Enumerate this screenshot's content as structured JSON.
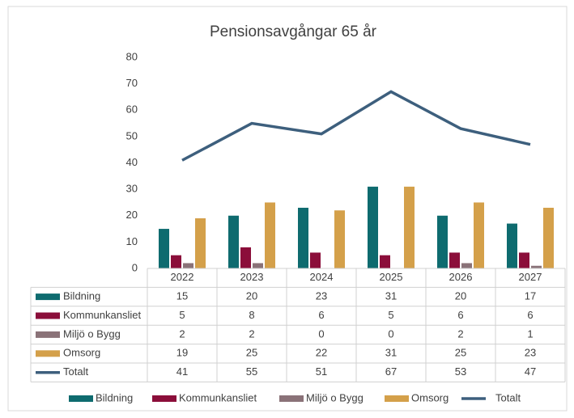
{
  "chart_data": {
    "type": "bar",
    "title": "Pensionsavgångar 65 år",
    "categories": [
      "2022",
      "2023",
      "2024",
      "2025",
      "2026",
      "2027"
    ],
    "series": [
      {
        "name": "Bildning",
        "type": "bar",
        "color": "#0e6b6f",
        "values": [
          15,
          20,
          23,
          31,
          20,
          17
        ]
      },
      {
        "name": "Kommunkansliet",
        "type": "bar",
        "color": "#8b0e3a",
        "values": [
          5,
          8,
          6,
          5,
          6,
          6
        ]
      },
      {
        "name": "Miljö o Bygg",
        "type": "bar",
        "color": "#8a7278",
        "values": [
          2,
          2,
          0,
          0,
          2,
          1
        ]
      },
      {
        "name": "Omsorg",
        "type": "bar",
        "color": "#d4a04a",
        "values": [
          19,
          25,
          22,
          31,
          25,
          23
        ]
      },
      {
        "name": "Totalt",
        "type": "line",
        "color": "#3d5f7d",
        "values": [
          41,
          55,
          51,
          67,
          53,
          47
        ]
      }
    ],
    "ylim": [
      0,
      80
    ],
    "yticks": [
      0,
      10,
      20,
      30,
      40,
      50,
      60,
      70,
      80
    ],
    "grid": false,
    "data_table": true,
    "legend": "bottom"
  }
}
